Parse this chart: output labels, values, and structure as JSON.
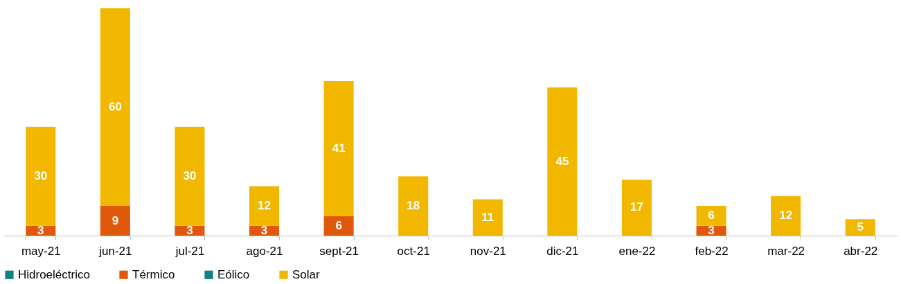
{
  "chart_data": {
    "type": "bar",
    "stacked": true,
    "data_labels": true,
    "legend": "bottom",
    "grid": false,
    "categories": [
      "may-21",
      "jun-21",
      "jul-21",
      "ago-21",
      "sept-21",
      "oct-21",
      "nov-21",
      "dic-21",
      "ene-22",
      "feb-22",
      "mar-22",
      "abr-22"
    ],
    "series": [
      {
        "name": "Hidroeléctrico",
        "color": "#138180",
        "values": [
          null,
          null,
          null,
          null,
          null,
          null,
          null,
          null,
          null,
          null,
          null,
          null
        ]
      },
      {
        "name": "Térmico",
        "color": "#e0580c",
        "values": [
          3,
          9,
          3,
          3,
          6,
          null,
          null,
          null,
          null,
          3,
          null,
          null
        ]
      },
      {
        "name": "Eólico",
        "color": "#138180",
        "values": [
          null,
          null,
          null,
          null,
          null,
          null,
          null,
          null,
          null,
          null,
          null,
          null
        ]
      },
      {
        "name": "Solar",
        "color": "#f2b800",
        "values": [
          30,
          60,
          30,
          12,
          41,
          18,
          11,
          45,
          17,
          6,
          12,
          5
        ]
      }
    ]
  }
}
